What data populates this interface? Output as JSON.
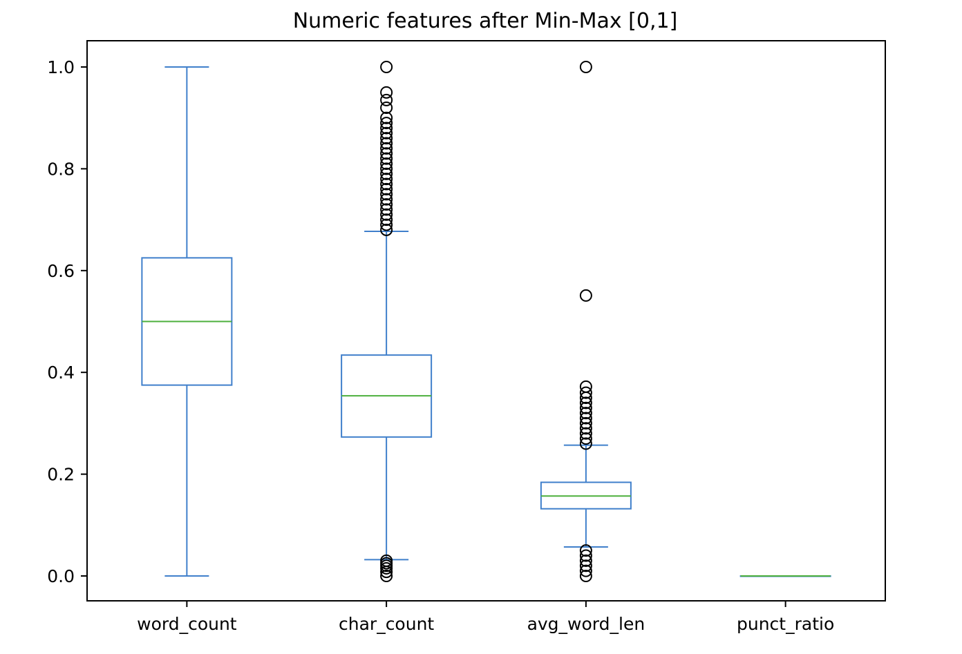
{
  "chart_data": {
    "type": "box",
    "title": "Numeric features after Min-Max [0,1]",
    "xlabel": "",
    "ylabel": "",
    "ylim": [
      -0.05,
      1.05
    ],
    "yticks": [
      0.0,
      0.2,
      0.4,
      0.6,
      0.8,
      1.0
    ],
    "ytick_labels": [
      "0.0",
      "0.2",
      "0.4",
      "0.6",
      "0.8",
      "1.0"
    ],
    "grid": false,
    "colors": {
      "box": "#3f7fcb",
      "median": "#4caf3c",
      "flier": "#000000",
      "axes": "#000000"
    },
    "categories": [
      "word_count",
      "char_count",
      "avg_word_len",
      "punct_ratio"
    ],
    "boxes": [
      {
        "category": "word_count",
        "whisker_low": 0.0,
        "q1": 0.375,
        "median": 0.5,
        "q3": 0.625,
        "whisker_high": 1.0,
        "fliers": []
      },
      {
        "category": "char_count",
        "whisker_low": 0.032,
        "q1": 0.273,
        "median": 0.354,
        "q3": 0.434,
        "whisker_high": 0.677,
        "fliers": [
          0.0,
          0.008,
          0.015,
          0.02,
          0.025,
          0.03,
          0.68,
          0.69,
          0.7,
          0.71,
          0.72,
          0.73,
          0.74,
          0.75,
          0.76,
          0.77,
          0.78,
          0.79,
          0.8,
          0.81,
          0.82,
          0.83,
          0.84,
          0.85,
          0.86,
          0.87,
          0.88,
          0.89,
          0.9,
          0.92,
          0.935,
          0.95,
          1.0
        ]
      },
      {
        "category": "avg_word_len",
        "whisker_low": 0.057,
        "q1": 0.132,
        "median": 0.157,
        "q3": 0.184,
        "whisker_high": 0.257,
        "fliers": [
          0.0,
          0.01,
          0.02,
          0.03,
          0.04,
          0.05,
          0.26,
          0.27,
          0.28,
          0.29,
          0.3,
          0.31,
          0.32,
          0.33,
          0.34,
          0.35,
          0.36,
          0.372,
          0.551,
          1.0
        ]
      },
      {
        "category": "punct_ratio",
        "whisker_low": 0.0,
        "q1": 0.0,
        "median": 0.0,
        "q3": 0.0,
        "whisker_high": 0.0,
        "fliers": []
      }
    ]
  }
}
